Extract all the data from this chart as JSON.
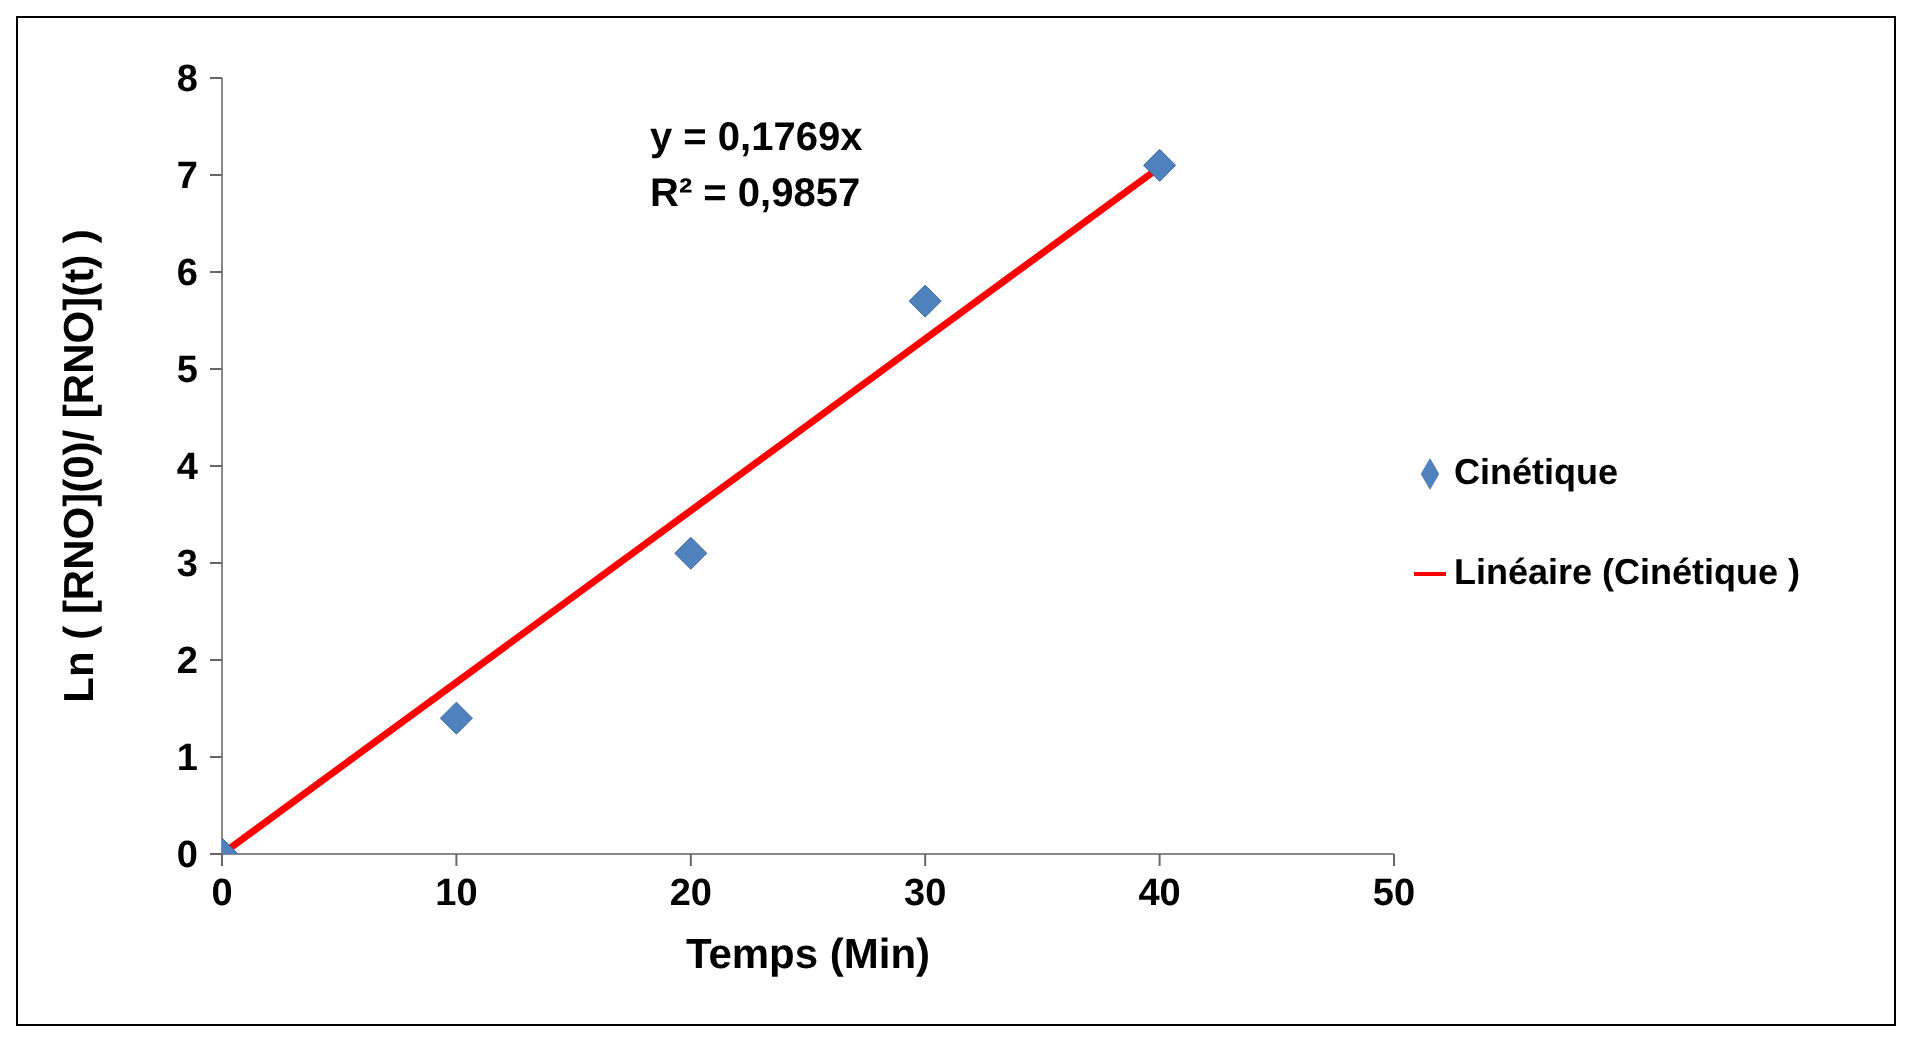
{
  "chart_data": {
    "type": "scatter",
    "xlabel": "Temps (Min)",
    "ylabel": "Ln ( [RNO](0)/ [RNO](t) )",
    "annotations": [
      "y = 0,1769x",
      "R² = 0,9857"
    ],
    "series": [
      {
        "name": "Cinétique",
        "marker": "diamond",
        "color": "#4f81bd",
        "x": [
          0,
          10,
          20,
          30,
          40
        ],
        "values": [
          0,
          1.4,
          3.1,
          5.7,
          7.1
        ]
      },
      {
        "name": "Linéaire (Cinétique )",
        "type": "line",
        "marker": "none",
        "line_style": "solid",
        "color": "#ff0000",
        "x": [
          0,
          40
        ],
        "values": [
          0,
          7.08
        ]
      }
    ],
    "xlim": [
      0,
      50
    ],
    "xticks": [
      0,
      10,
      20,
      30,
      40,
      50
    ],
    "ylim": [
      0,
      8
    ],
    "yticks": [
      0,
      1,
      2,
      3,
      4,
      5,
      6,
      7,
      8
    ],
    "grid": false,
    "legend": "right"
  }
}
